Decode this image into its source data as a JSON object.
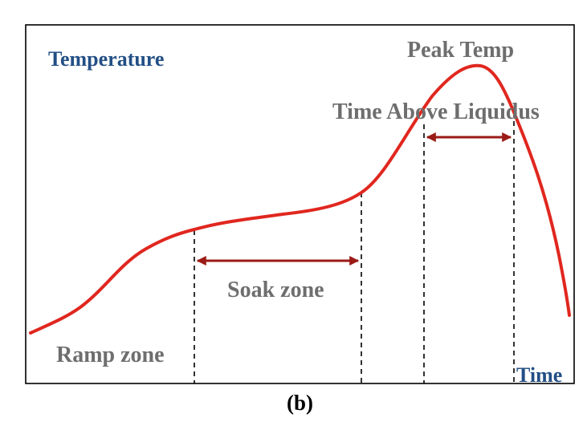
{
  "labels": {
    "y_axis": "Temperature",
    "x_axis": "Time",
    "peak": "Peak Temp",
    "tal": "Time Above Liquidus",
    "soak": "Soak zone",
    "ramp": "Ramp zone",
    "caption": "(b)"
  },
  "colors": {
    "curve": "#e0271f",
    "arrows": "#9b1b16",
    "axis_labels": "#234f85",
    "zone_labels": "#6e6e6e"
  }
}
